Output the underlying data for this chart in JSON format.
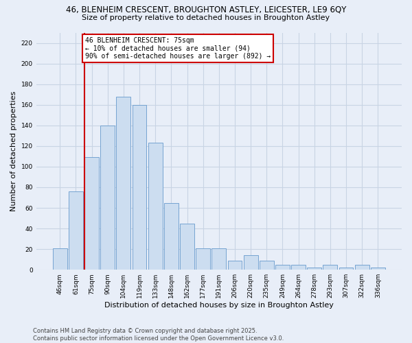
{
  "title_line1": "46, BLENHEIM CRESCENT, BROUGHTON ASTLEY, LEICESTER, LE9 6QY",
  "title_line2": "Size of property relative to detached houses in Broughton Astley",
  "xlabel": "Distribution of detached houses by size in Broughton Astley",
  "ylabel": "Number of detached properties",
  "categories": [
    "46sqm",
    "61sqm",
    "75sqm",
    "90sqm",
    "104sqm",
    "119sqm",
    "133sqm",
    "148sqm",
    "162sqm",
    "177sqm",
    "191sqm",
    "206sqm",
    "220sqm",
    "235sqm",
    "249sqm",
    "264sqm",
    "278sqm",
    "293sqm",
    "307sqm",
    "322sqm",
    "336sqm"
  ],
  "values": [
    21,
    76,
    109,
    140,
    168,
    160,
    123,
    65,
    45,
    21,
    21,
    9,
    14,
    9,
    5,
    5,
    2,
    5,
    2,
    5,
    2
  ],
  "bar_color": "#ccddf0",
  "bar_edge_color": "#6699cc",
  "highlight_index": 2,
  "highlight_line_color": "#cc0000",
  "annotation_text": "46 BLENHEIM CRESCENT: 75sqm\n← 10% of detached houses are smaller (94)\n90% of semi-detached houses are larger (892) →",
  "ylim": [
    0,
    230
  ],
  "yticks": [
    0,
    20,
    40,
    60,
    80,
    100,
    120,
    140,
    160,
    180,
    200,
    220
  ],
  "footer_text": "Contains HM Land Registry data © Crown copyright and database right 2025.\nContains public sector information licensed under the Open Government Licence v3.0.",
  "grid_color": "#c8d4e4",
  "bg_color": "#e8eef8",
  "title_fontsize": 8.5,
  "subtitle_fontsize": 8,
  "axis_label_fontsize": 8,
  "tick_fontsize": 6.5,
  "footer_fontsize": 6,
  "annotation_fontsize": 7
}
